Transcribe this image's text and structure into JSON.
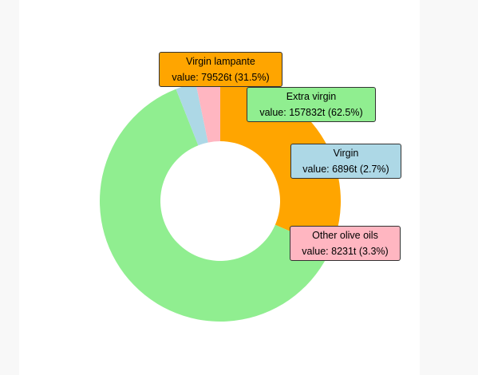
{
  "colors": {
    "background": "#f8f8f8",
    "panel": "#ffffff"
  },
  "chart_data": {
    "type": "pie",
    "style": "donut",
    "unit": "t",
    "slices": [
      {
        "name": "Virgin lampante",
        "value": 79526,
        "percent": "31.5%",
        "color": "#ffa500",
        "label_line1": "Virgin lampante",
        "label_line2": "value: 79526t (31.5%)"
      },
      {
        "name": "Extra virgin",
        "value": 157832,
        "percent": "62.5%",
        "color": "#90ee90",
        "label_line1": "Extra virgin",
        "label_line2": "value: 157832t (62.5%)"
      },
      {
        "name": "Virgin",
        "value": 6896,
        "percent": "2.7%",
        "color": "#add8e6",
        "label_line1": "Virgin",
        "label_line2": "value: 6896t (2.7%)"
      },
      {
        "name": "Other olive oils",
        "value": 8231,
        "percent": "3.3%",
        "color": "#ffb6c1",
        "label_line1": "Other olive oils",
        "label_line2": "value: 8231t (3.3%)"
      }
    ]
  }
}
